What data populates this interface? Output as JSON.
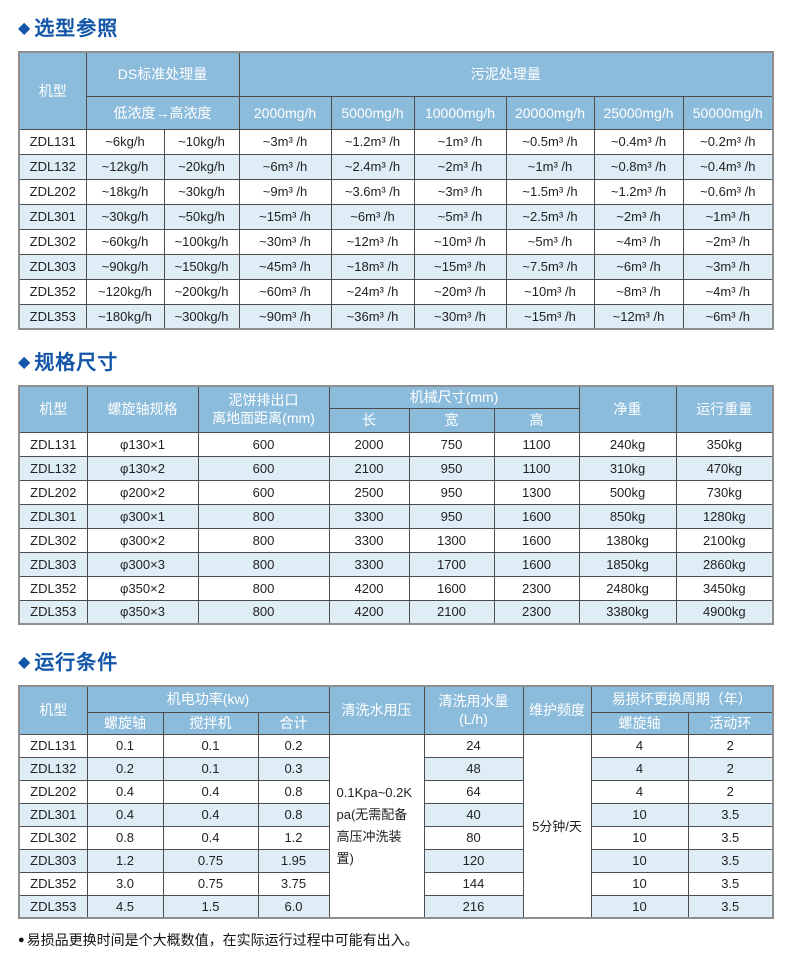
{
  "colors": {
    "title_blue": "#1356A8",
    "header_bg": "#8CBCDC",
    "header_text": "#FFFFFF",
    "zebra_bg": "#DEEDF6",
    "inner_border": "#4D4D4D",
    "outer_border": "#8E8E8E"
  },
  "selection": {
    "bullet": "◆",
    "title": "选型参照",
    "header": {
      "model": "机型",
      "ds_group": "DS标准处理量",
      "ds_range": "低浓度→高浓度",
      "sludge_group": "污泥处理量",
      "rates": [
        "2000mg/h",
        "5000mg/h",
        "10000mg/h",
        "20000mg/h",
        "25000mg/h",
        "50000mg/h"
      ]
    },
    "rows": [
      [
        "ZDL131",
        "~6kg/h",
        "~10kg/h",
        "~3m³ /h",
        "~1.2m³ /h",
        "~1m³ /h",
        "~0.5m³ /h",
        "~0.4m³ /h",
        "~0.2m³ /h"
      ],
      [
        "ZDL132",
        "~12kg/h",
        "~20kg/h",
        "~6m³ /h",
        "~2.4m³ /h",
        "~2m³ /h",
        "~1m³ /h",
        "~0.8m³ /h",
        "~0.4m³ /h"
      ],
      [
        "ZDL202",
        "~18kg/h",
        "~30kg/h",
        "~9m³ /h",
        "~3.6m³ /h",
        "~3m³ /h",
        "~1.5m³ /h",
        "~1.2m³ /h",
        "~0.6m³ /h"
      ],
      [
        "ZDL301",
        "~30kg/h",
        "~50kg/h",
        "~15m³ /h",
        "~6m³ /h",
        "~5m³ /h",
        "~2.5m³ /h",
        "~2m³ /h",
        "~1m³ /h"
      ],
      [
        "ZDL302",
        "~60kg/h",
        "~100kg/h",
        "~30m³ /h",
        "~12m³ /h",
        "~10m³ /h",
        "~5m³ /h",
        "~4m³ /h",
        "~2m³ /h"
      ],
      [
        "ZDL303",
        "~90kg/h",
        "~150kg/h",
        "~45m³ /h",
        "~18m³ /h",
        "~15m³ /h",
        "~7.5m³ /h",
        "~6m³ /h",
        "~3m³ /h"
      ],
      [
        "ZDL352",
        "~120kg/h",
        "~200kg/h",
        "~60m³ /h",
        "~24m³ /h",
        "~20m³ /h",
        "~10m³ /h",
        "~8m³ /h",
        "~4m³ /h"
      ],
      [
        "ZDL353",
        "~180kg/h",
        "~300kg/h",
        "~90m³ /h",
        "~36m³ /h",
        "~30m³ /h",
        "~15m³ /h",
        "~12m³ /h",
        "~6m³ /h"
      ]
    ]
  },
  "dimensions": {
    "bullet": "◆",
    "title": "规格尺寸",
    "header": {
      "model": "机型",
      "screw_spec": "螺旋轴规格",
      "outlet_line1": "泥饼排出口",
      "outlet_line2": "离地面距离(mm)",
      "machine_size_group": "机械尺寸(mm)",
      "length": "长",
      "width": "宽",
      "height": "高",
      "net_weight": "净重",
      "operating_weight": "运行重量"
    },
    "rows": [
      [
        "ZDL131",
        "φ130×1",
        "600",
        "2000",
        "750",
        "1100",
        "240kg",
        "350kg"
      ],
      [
        "ZDL132",
        "φ130×2",
        "600",
        "2100",
        "950",
        "1100",
        "310kg",
        "470kg"
      ],
      [
        "ZDL202",
        "φ200×2",
        "600",
        "2500",
        "950",
        "1300",
        "500kg",
        "730kg"
      ],
      [
        "ZDL301",
        "φ300×1",
        "800",
        "3300",
        "950",
        "1600",
        "850kg",
        "1280kg"
      ],
      [
        "ZDL302",
        "φ300×2",
        "800",
        "3300",
        "1300",
        "1600",
        "1380kg",
        "2100kg"
      ],
      [
        "ZDL303",
        "φ300×3",
        "800",
        "3300",
        "1700",
        "1600",
        "1850kg",
        "2860kg"
      ],
      [
        "ZDL352",
        "φ350×2",
        "800",
        "4200",
        "1600",
        "2300",
        "2480kg",
        "3450kg"
      ],
      [
        "ZDL353",
        "φ350×3",
        "800",
        "4200",
        "2100",
        "2300",
        "3380kg",
        "4900kg"
      ]
    ]
  },
  "operating": {
    "bullet": "◆",
    "title": "运行条件",
    "header": {
      "model": "机型",
      "power_group": "机电功率(kw)",
      "screw": "螺旋轴",
      "mixer": "搅拌机",
      "total": "合计",
      "wash_pressure": "清洗水用压",
      "wash_volume_line1": "清洗用水量",
      "wash_volume_line2": "(L/h)",
      "maintenance": "维护频度",
      "wear_group": "易损坏更换周期（年）",
      "wear_screw": "螺旋轴",
      "wear_ring": "活动环"
    },
    "wash_pressure_value": "0.1Kpa~0.2Kpa(无需配备高压冲洗装置)",
    "maintenance_value": "5分钟/天",
    "rows": [
      [
        "ZDL131",
        "0.1",
        "0.1",
        "0.2",
        {
          "text": "0.1Kpa~0.2Kpa(无需配备高压冲洗装置)",
          "rowspan": 8,
          "cls": "cell-pressure",
          "name": "wash-pressure-cell"
        },
        "24",
        {
          "text": "5分钟/天",
          "rowspan": 8,
          "cls": "cell-freq",
          "name": "maintenance-frequency-cell"
        },
        "4",
        "2"
      ],
      [
        "ZDL132",
        "0.2",
        "0.1",
        "0.3",
        "48",
        "4",
        "2"
      ],
      [
        "ZDL202",
        "0.4",
        "0.4",
        "0.8",
        "64",
        "4",
        "2"
      ],
      [
        "ZDL301",
        "0.4",
        "0.4",
        "0.8",
        "40",
        "10",
        "3.5"
      ],
      [
        "ZDL302",
        "0.8",
        "0.4",
        "1.2",
        "80",
        "10",
        "3.5"
      ],
      [
        "ZDL303",
        "1.2",
        "0.75",
        "1.95",
        "120",
        "10",
        "3.5"
      ],
      [
        "ZDL352",
        "3.0",
        "0.75",
        "3.75",
        "144",
        "10",
        "3.5"
      ],
      [
        "ZDL353",
        "4.5",
        "1.5",
        "6.0",
        "216",
        "10",
        "3.5"
      ]
    ]
  },
  "footnote": {
    "bullet": "●",
    "text": "易损品更换时间是个大概数值，在实际运行过程中可能有出入。"
  }
}
